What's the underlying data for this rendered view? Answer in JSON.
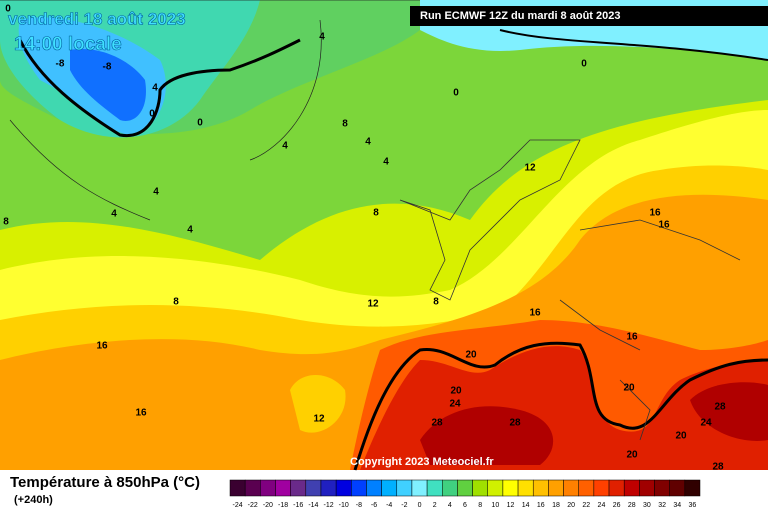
{
  "header": {
    "date": "vendredi 18 août 2023",
    "time": "14:00 locale",
    "run": "Run ECMWF 12Z du mardi 8 août 2023"
  },
  "copyright": "Copyright 2023 Meteociel.fr",
  "legend": {
    "title": "Température à 850hPa (°C)",
    "lead": "(+240h)",
    "ticks": [
      -24,
      -22,
      -20,
      -18,
      -16,
      -14,
      -12,
      -10,
      -8,
      -6,
      -4,
      -2,
      0,
      2,
      4,
      6,
      8,
      10,
      12,
      14,
      16,
      18,
      20,
      22,
      24,
      26,
      28,
      30,
      32,
      34,
      36
    ],
    "colors": [
      "#3a0030",
      "#5a0050",
      "#800080",
      "#a000a0",
      "#6a2a8a",
      "#4040b0",
      "#2020c0",
      "#0000e0",
      "#0040ff",
      "#0080ff",
      "#00b0ff",
      "#40d0ff",
      "#80f0ff",
      "#40e0c0",
      "#40d080",
      "#60d040",
      "#a0e000",
      "#d0f000",
      "#ffff00",
      "#ffe000",
      "#ffc000",
      "#ffa000",
      "#ff8000",
      "#ff6000",
      "#ff4000",
      "#e02000",
      "#c00000",
      "#a00000",
      "#800000",
      "#600000",
      "#300000"
    ]
  },
  "map": {
    "contour_labels": [
      0,
      -8,
      -8,
      4,
      0,
      0,
      4,
      0,
      0,
      8,
      4,
      4,
      4,
      4,
      4,
      4,
      8,
      8,
      12,
      16,
      16,
      8,
      12,
      8,
      16,
      16,
      16,
      20,
      20,
      24,
      20,
      16,
      12,
      28,
      28,
      28,
      24,
      20,
      20,
      28
    ]
  }
}
